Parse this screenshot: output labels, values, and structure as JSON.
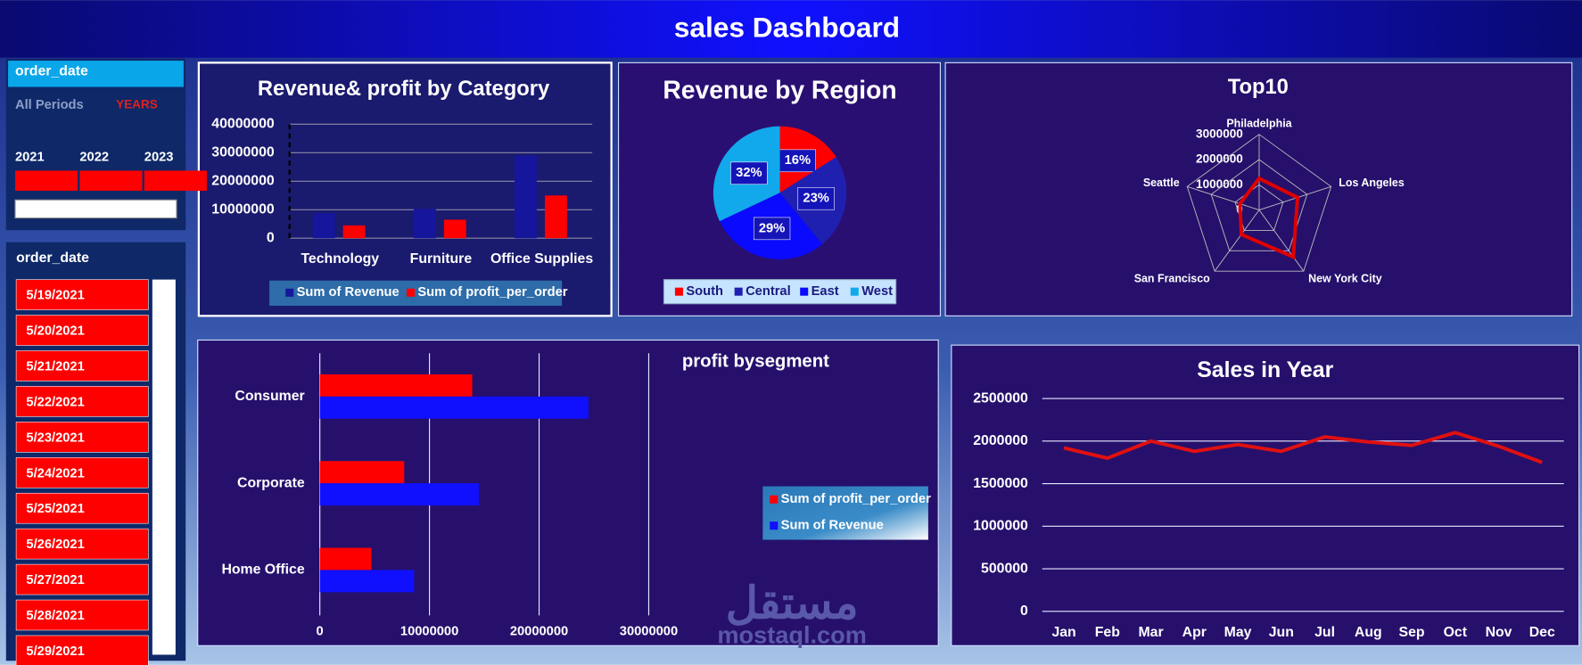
{
  "header": {
    "title": "sales Dashboard"
  },
  "slicers": [
    {
      "title": "order_date",
      "period": "All Periods",
      "level": "YEARS",
      "years": [
        "2021",
        "2022",
        "2023"
      ]
    },
    {
      "title": "order_date",
      "items": [
        "5/19/2021",
        "5/20/2021",
        "5/21/2021",
        "5/22/2021",
        "5/23/2021",
        "5/24/2021",
        "5/25/2021",
        "5/26/2021",
        "5/27/2021",
        "5/28/2021",
        "5/29/2021"
      ]
    }
  ],
  "watermark": {
    "arabic": "مستقل",
    "latin": "mostaql.com"
  },
  "chart_data": [
    {
      "type": "bar",
      "title": "Revenue& profit by Category",
      "categories": [
        "Technology",
        "Furniture",
        "Office Supplies"
      ],
      "series": [
        {
          "name": "Sum of Revenue",
          "color": "#16169c",
          "values": [
            8800000,
            10300000,
            29000000
          ]
        },
        {
          "name": "Sum of profit_per_order",
          "color": "#ff0000",
          "values": [
            4500000,
            6500000,
            15000000
          ]
        }
      ],
      "ylim": [
        0,
        40000000
      ],
      "yticks": [
        0,
        10000000,
        20000000,
        30000000,
        40000000
      ],
      "grid": true
    },
    {
      "type": "pie",
      "title": "Revenue by Region",
      "categories": [
        "South",
        "Central",
        "East",
        "West"
      ],
      "values": [
        16,
        23,
        29,
        32
      ],
      "value_labels": [
        "16%",
        "23%",
        "29%",
        "32%"
      ],
      "colors": [
        "#ff0000",
        "#2020b0",
        "#0a0aff",
        "#12a8ec"
      ]
    },
    {
      "type": "radar",
      "title": "Top10",
      "categories": [
        "Philadelphia",
        "Los Angeles",
        "New York City",
        "San Francisco",
        "Seattle"
      ],
      "values": [
        1250000,
        1600000,
        2300000,
        1200000,
        800000
      ],
      "color": "#e00000",
      "rlim": [
        0,
        3000000
      ],
      "rticks": [
        0,
        1000000,
        2000000,
        3000000
      ]
    },
    {
      "type": "hbar",
      "title": "profit bysegment",
      "categories": [
        "Consumer",
        "Corporate",
        "Home Office"
      ],
      "series": [
        {
          "name": "Sum of profit_per_order",
          "color": "#ff0000",
          "values": [
            13900000,
            7700000,
            4700000
          ]
        },
        {
          "name": "Sum of Revenue",
          "color": "#1010ff",
          "values": [
            24500000,
            14500000,
            8600000
          ]
        }
      ],
      "xlim": [
        0,
        30000000
      ],
      "xticks": [
        0,
        10000000,
        20000000,
        30000000
      ],
      "grid": true
    },
    {
      "type": "line",
      "title": "Sales in Year",
      "categories": [
        "Jan",
        "Feb",
        "Mar",
        "Apr",
        "May",
        "Jun",
        "Jul",
        "Aug",
        "Sep",
        "Oct",
        "Nov",
        "Dec"
      ],
      "values": [
        1920000,
        1800000,
        2000000,
        1880000,
        1960000,
        1880000,
        2050000,
        1990000,
        1950000,
        2100000,
        1940000,
        1750000
      ],
      "color": "#e01010",
      "ylim": [
        0,
        2500000
      ],
      "yticks": [
        0,
        500000,
        1000000,
        1500000,
        2000000,
        2500000
      ],
      "grid": true
    }
  ]
}
